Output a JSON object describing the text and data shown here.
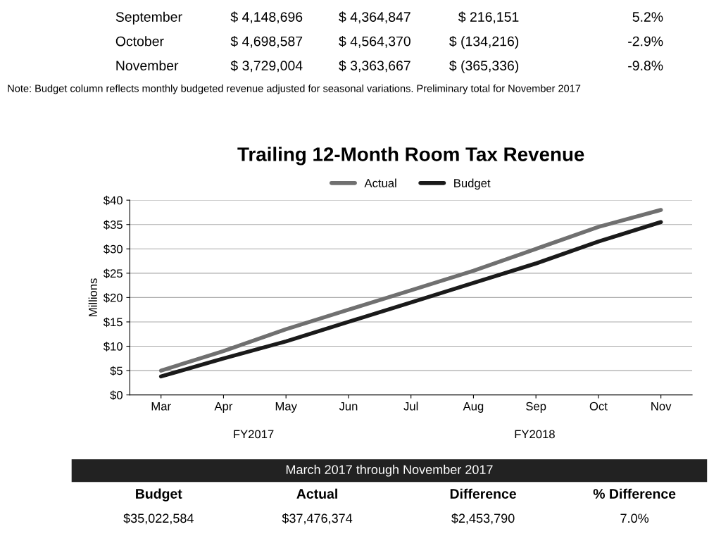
{
  "chart_data": {
    "type": "line",
    "title": "Trailing 12-Month Room Tax Revenue",
    "ylabel": "Millions",
    "categories": [
      "Mar",
      "Apr",
      "May",
      "Jun",
      "Jul",
      "Aug",
      "Sep",
      "Oct",
      "Nov"
    ],
    "series": [
      {
        "name": "Actual",
        "color": "#707070",
        "values": [
          5,
          9,
          13.5,
          17.5,
          21.5,
          25.5,
          30,
          34.5,
          38
        ]
      },
      {
        "name": "Budget",
        "color": "#1a1a1a",
        "values": [
          3.8,
          7.5,
          11,
          15,
          19,
          23,
          27,
          31.5,
          35.5
        ]
      }
    ],
    "ylim": [
      0,
      40
    ],
    "yticks": [
      {
        "value": 0,
        "label": "$0"
      },
      {
        "value": 5,
        "label": "$5"
      },
      {
        "value": 10,
        "label": "$10"
      },
      {
        "value": 15,
        "label": "$15"
      },
      {
        "value": 20,
        "label": "$20"
      },
      {
        "value": 25,
        "label": "$25"
      },
      {
        "value": 30,
        "label": "$30"
      },
      {
        "value": 35,
        "label": "$35"
      },
      {
        "value": 40,
        "label": "$40"
      }
    ],
    "grid": "y",
    "legend": "top",
    "marker": "none",
    "line_style": "solid",
    "annotations": [
      "September",
      "$ 4,148,696",
      "$ 4,364,847",
      "$ 216,151",
      "5.2%",
      "October",
      "$ 4,698,587",
      "$ 4,564,370",
      "$ (134,216)",
      "-2.9%",
      "November",
      "$ 3,729,004",
      "$ 3,363,667",
      "$ (365,336)",
      "-9.8%",
      "Note: Budget column reflects monthly budgeted revenue adjusted for seasonal variations. Preliminary total for November 2017",
      "FY2017",
      "FY2018",
      "March 2017 through November 2017",
      "Budget",
      "Actual",
      "Difference",
      "% Difference",
      "$35,022,584",
      "$37,476,374",
      "$2,453,790",
      "7.0%"
    ]
  }
}
